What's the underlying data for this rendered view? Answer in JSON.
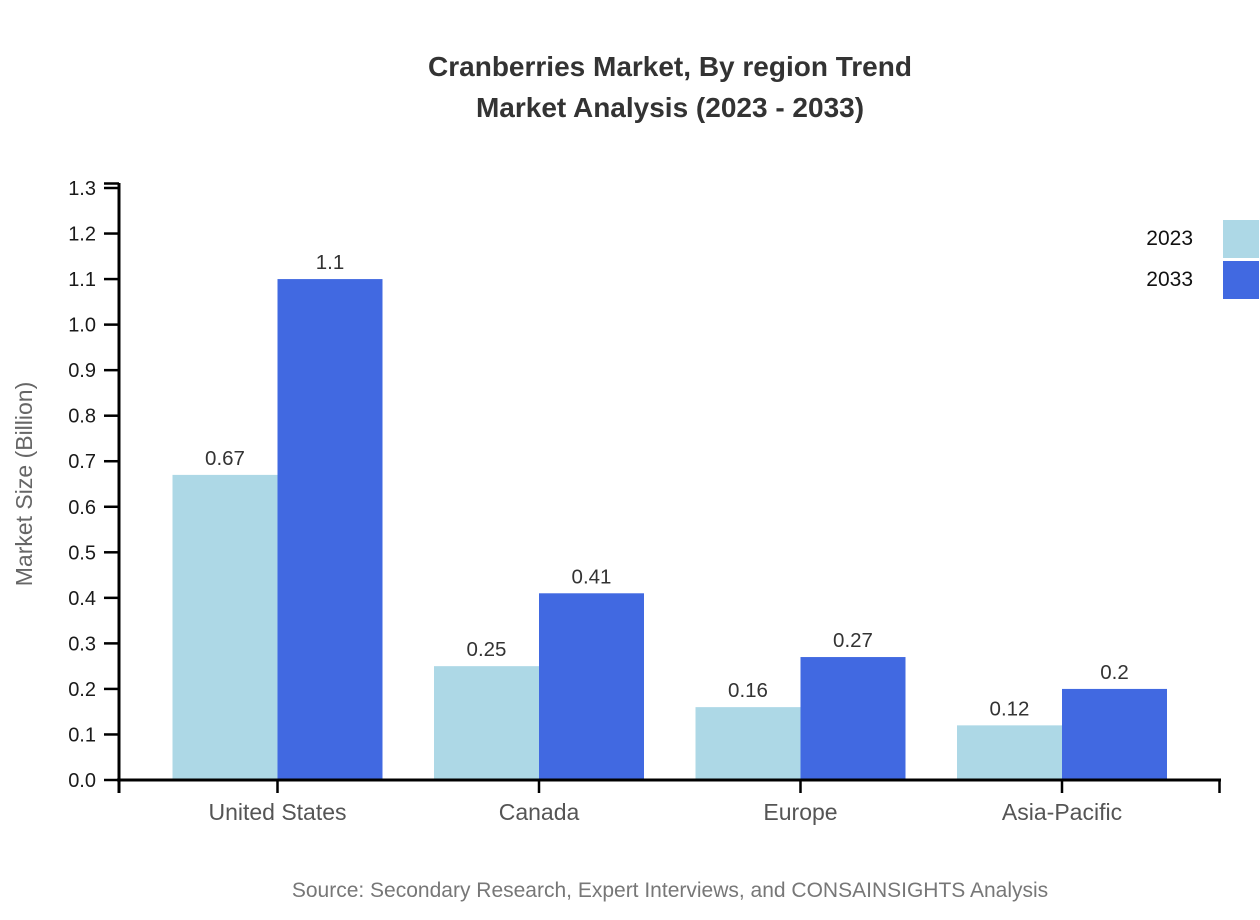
{
  "title": {
    "line1": "Cranberries Market, By region Trend",
    "line2": "Market Analysis (2023 - 2033)"
  },
  "source": "Source: Secondary Research, Expert Interviews, and CONSAINSIGHTS Analysis",
  "chart_data": {
    "type": "bar",
    "title": "Cranberries Market, By region Trend\nMarket Analysis (2023 - 2033)",
    "categories": [
      "United States",
      "Canada",
      "Europe",
      "Asia-Pacific"
    ],
    "series": [
      {
        "name": "2023",
        "color": "#ADD8E6",
        "values": [
          0.67,
          0.25,
          0.16,
          0.12
        ]
      },
      {
        "name": "2033",
        "color": "#4169E1",
        "values": [
          1.1,
          0.41,
          0.27,
          0.2
        ]
      }
    ],
    "xlabel": "",
    "ylabel": "Market Size (Billion)",
    "ylim": [
      0,
      1.3
    ],
    "ytick_interval": 0.1,
    "grid": false,
    "legend_position": "right-outside",
    "bar_value_labels": true
  },
  "colors": {
    "axis": "#000000",
    "title_text": "#333333",
    "tick_label": "#1a1a1a",
    "category_label": "#555555",
    "y_axis_label": "#666666",
    "value_label": "#333333",
    "legend_text": "#111111",
    "source_text": "#777777",
    "background": "#ffffff"
  }
}
